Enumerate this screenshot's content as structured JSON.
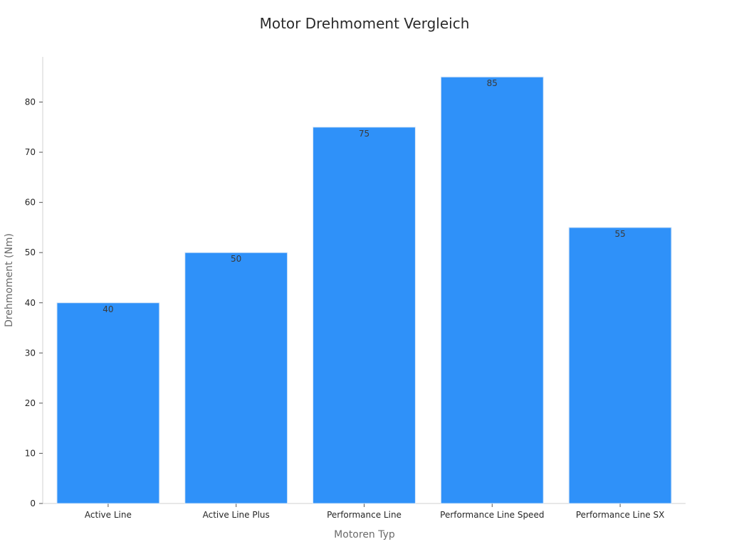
{
  "chart_data": {
    "type": "bar",
    "title": "Motor Drehmoment Vergleich",
    "xlabel": "Motoren Typ",
    "ylabel": "Drehmoment (Nm)",
    "categories": [
      "Active Line",
      "Active Line Plus",
      "Performance Line",
      "Performance Line Speed",
      "Performance Line SX"
    ],
    "values": [
      40,
      50,
      75,
      85,
      55
    ],
    "yticks": [
      0,
      10,
      20,
      30,
      40,
      50,
      60,
      70,
      80
    ],
    "ylim": [
      0,
      89
    ],
    "bar_color": "#2f91f9",
    "bar_edge_color": "#d6e6f7",
    "grid": false,
    "data_labels": true
  }
}
